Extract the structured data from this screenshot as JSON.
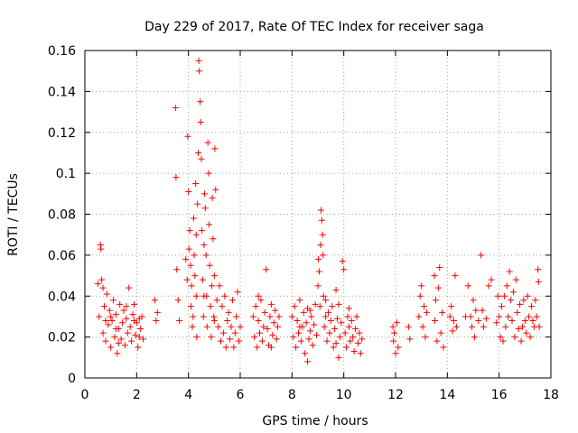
{
  "chart_data": {
    "type": "scatter",
    "title": "Day 229 of 2017, Rate Of TEC Index for receiver saga",
    "xlabel": "GPS time / hours",
    "ylabel": "ROTI / TECUs",
    "xlim": [
      0,
      18
    ],
    "ylim": [
      0,
      0.16
    ],
    "x_ticks": [
      0,
      2,
      4,
      6,
      8,
      10,
      12,
      14,
      16,
      18
    ],
    "x_tick_labels": [
      "0",
      "2",
      "4",
      "6",
      "8",
      "10",
      "12",
      "14",
      "16",
      "18"
    ],
    "y_ticks": [
      0,
      0.02,
      0.04,
      0.06,
      0.08,
      0.1,
      0.12,
      0.14,
      0.16
    ],
    "y_tick_labels": [
      "0",
      "0.02",
      "0.04",
      "0.06",
      "0.08",
      "0.1",
      "0.12",
      "0.14",
      "0.16"
    ],
    "grid": true,
    "marker": "+",
    "color": "#ff0000",
    "series": [
      {
        "name": "ROTI",
        "points": [
          [
            0.5,
            0.046
          ],
          [
            0.55,
            0.03
          ],
          [
            0.6,
            0.065
          ],
          [
            0.62,
            0.063
          ],
          [
            0.65,
            0.048
          ],
          [
            0.7,
            0.022
          ],
          [
            0.75,
            0.035
          ],
          [
            0.8,
            0.018
          ],
          [
            0.85,
            0.041
          ],
          [
            0.9,
            0.026
          ],
          [
            0.95,
            0.033
          ],
          [
            1.0,
            0.015
          ],
          [
            1.05,
            0.028
          ],
          [
            1.1,
            0.038
          ],
          [
            1.15,
            0.02
          ],
          [
            1.2,
            0.031
          ],
          [
            1.25,
            0.012
          ],
          [
            1.3,
            0.024
          ],
          [
            1.35,
            0.036
          ],
          [
            1.4,
            0.019
          ],
          [
            1.45,
            0.027
          ],
          [
            1.5,
            0.033
          ],
          [
            1.55,
            0.016
          ],
          [
            1.6,
            0.029
          ],
          [
            1.65,
            0.022
          ],
          [
            1.7,
            0.044
          ],
          [
            1.75,
            0.025
          ],
          [
            1.8,
            0.018
          ],
          [
            1.85,
            0.031
          ],
          [
            1.9,
            0.036
          ],
          [
            1.95,
            0.021
          ],
          [
            2.0,
            0.027
          ],
          [
            2.05,
            0.015
          ],
          [
            2.1,
            0.029
          ],
          [
            2.15,
            0.024
          ],
          [
            2.2,
            0.03
          ],
          [
            2.25,
            0.019
          ],
          [
            0.7,
            0.044
          ],
          [
            1.0,
            0.03
          ],
          [
            1.3,
            0.017
          ],
          [
            1.6,
            0.035
          ],
          [
            1.9,
            0.028
          ],
          [
            2.1,
            0.02
          ],
          [
            0.8,
            0.028
          ],
          [
            1.2,
            0.024
          ],
          [
            2.7,
            0.038
          ],
          [
            2.75,
            0.028
          ],
          [
            2.8,
            0.032
          ],
          [
            3.5,
            0.132
          ],
          [
            3.52,
            0.098
          ],
          [
            3.55,
            0.053
          ],
          [
            3.6,
            0.038
          ],
          [
            3.65,
            0.028
          ],
          [
            3.9,
            0.058
          ],
          [
            3.95,
            0.048
          ],
          [
            3.97,
            0.118
          ],
          [
            4.0,
            0.091
          ],
          [
            4.02,
            0.063
          ],
          [
            4.05,
            0.072
          ],
          [
            4.08,
            0.055
          ],
          [
            4.1,
            0.035
          ],
          [
            4.12,
            0.045
          ],
          [
            4.15,
            0.025
          ],
          [
            4.18,
            0.03
          ],
          [
            4.2,
            0.078
          ],
          [
            4.22,
            0.06
          ],
          [
            4.25,
            0.05
          ],
          [
            4.28,
            0.095
          ],
          [
            4.3,
            0.04
          ],
          [
            4.32,
            0.02
          ],
          [
            4.35,
            0.085
          ],
          [
            4.38,
            0.11
          ],
          [
            4.4,
            0.155
          ],
          [
            4.42,
            0.15
          ],
          [
            4.45,
            0.135
          ],
          [
            4.47,
            0.125
          ],
          [
            4.5,
            0.107
          ],
          [
            4.52,
            0.072
          ],
          [
            4.55,
            0.048
          ],
          [
            4.58,
            0.03
          ],
          [
            4.6,
            0.065
          ],
          [
            4.62,
            0.09
          ],
          [
            4.65,
            0.083
          ],
          [
            4.68,
            0.06
          ],
          [
            4.7,
            0.04
          ],
          [
            4.72,
            0.025
          ],
          [
            4.75,
            0.115
          ],
          [
            4.78,
            0.1
          ],
          [
            4.8,
            0.075
          ],
          [
            4.82,
            0.055
          ],
          [
            4.85,
            0.035
          ],
          [
            4.88,
            0.02
          ],
          [
            4.9,
            0.045
          ],
          [
            4.92,
            0.088
          ],
          [
            4.95,
            0.068
          ],
          [
            4.98,
            0.03
          ],
          [
            5.0,
            0.05
          ],
          [
            5.02,
            0.112
          ],
          [
            5.05,
            0.092
          ],
          [
            5.1,
            0.038
          ],
          [
            5.15,
            0.025
          ],
          [
            5.2,
            0.045
          ],
          [
            5.25,
            0.018
          ],
          [
            5.3,
            0.035
          ],
          [
            5.35,
            0.022
          ],
          [
            5.4,
            0.04
          ],
          [
            5.45,
            0.015
          ],
          [
            5.5,
            0.028
          ],
          [
            5.55,
            0.032
          ],
          [
            5.6,
            0.019
          ],
          [
            5.65,
            0.025
          ],
          [
            5.7,
            0.038
          ],
          [
            5.75,
            0.015
          ],
          [
            5.8,
            0.022
          ],
          [
            5.85,
            0.03
          ],
          [
            5.9,
            0.042
          ],
          [
            5.95,
            0.018
          ],
          [
            6.0,
            0.025
          ],
          [
            4.3,
            0.07
          ],
          [
            4.6,
            0.04
          ],
          [
            5.0,
            0.028
          ],
          [
            6.5,
            0.03
          ],
          [
            6.55,
            0.02
          ],
          [
            6.6,
            0.035
          ],
          [
            6.65,
            0.015
          ],
          [
            6.7,
            0.028
          ],
          [
            6.75,
            0.022
          ],
          [
            6.8,
            0.038
          ],
          [
            6.85,
            0.018
          ],
          [
            6.9,
            0.025
          ],
          [
            6.95,
            0.032
          ],
          [
            7.0,
            0.053
          ],
          [
            7.05,
            0.024
          ],
          [
            7.1,
            0.016
          ],
          [
            7.15,
            0.03
          ],
          [
            7.2,
            0.036
          ],
          [
            7.25,
            0.021
          ],
          [
            7.3,
            0.027
          ],
          [
            7.35,
            0.033
          ],
          [
            7.4,
            0.019
          ],
          [
            7.45,
            0.025
          ],
          [
            7.5,
            0.03
          ],
          [
            6.7,
            0.04
          ],
          [
            7.2,
            0.015
          ],
          [
            8.0,
            0.03
          ],
          [
            8.05,
            0.02
          ],
          [
            8.1,
            0.035
          ],
          [
            8.15,
            0.015
          ],
          [
            8.2,
            0.028
          ],
          [
            8.25,
            0.022
          ],
          [
            8.3,
            0.038
          ],
          [
            8.35,
            0.018
          ],
          [
            8.4,
            0.025
          ],
          [
            8.45,
            0.032
          ],
          [
            8.5,
            0.012
          ],
          [
            8.55,
            0.027
          ],
          [
            8.6,
            0.034
          ],
          [
            8.65,
            0.019
          ],
          [
            8.7,
            0.023
          ],
          [
            8.75,
            0.03
          ],
          [
            8.8,
            0.016
          ],
          [
            8.85,
            0.026
          ],
          [
            8.9,
            0.036
          ],
          [
            8.95,
            0.021
          ],
          [
            9.0,
            0.045
          ],
          [
            9.02,
            0.058
          ],
          [
            9.05,
            0.052
          ],
          [
            9.08,
            0.035
          ],
          [
            9.1,
            0.065
          ],
          [
            9.12,
            0.082
          ],
          [
            9.15,
            0.077
          ],
          [
            9.18,
            0.07
          ],
          [
            9.2,
            0.06
          ],
          [
            9.22,
            0.04
          ],
          [
            9.25,
            0.025
          ],
          [
            9.3,
            0.03
          ],
          [
            9.35,
            0.018
          ],
          [
            9.4,
            0.032
          ],
          [
            9.45,
            0.022
          ],
          [
            9.5,
            0.028
          ],
          [
            9.55,
            0.035
          ],
          [
            9.6,
            0.015
          ],
          [
            9.65,
            0.024
          ],
          [
            9.7,
            0.043
          ],
          [
            9.75,
            0.029
          ],
          [
            9.8,
            0.036
          ],
          [
            9.85,
            0.02
          ],
          [
            9.9,
            0.027
          ],
          [
            9.95,
            0.057
          ],
          [
            10.0,
            0.053
          ],
          [
            10.05,
            0.022
          ],
          [
            10.1,
            0.015
          ],
          [
            10.15,
            0.03
          ],
          [
            10.2,
            0.025
          ],
          [
            10.25,
            0.018
          ],
          [
            10.3,
            0.028
          ],
          [
            10.35,
            0.02
          ],
          [
            10.4,
            0.013
          ],
          [
            10.45,
            0.024
          ],
          [
            10.5,
            0.03
          ],
          [
            10.55,
            0.017
          ],
          [
            10.6,
            0.022
          ],
          [
            10.65,
            0.012
          ],
          [
            10.7,
            0.019
          ],
          [
            8.3,
            0.025
          ],
          [
            8.7,
            0.033
          ],
          [
            9.3,
            0.038
          ],
          [
            9.7,
            0.017
          ],
          [
            10.2,
            0.034
          ],
          [
            8.6,
            0.008
          ],
          [
            9.8,
            0.01
          ],
          [
            11.9,
            0.025
          ],
          [
            11.92,
            0.018
          ],
          [
            11.95,
            0.022
          ],
          [
            12.0,
            0.012
          ],
          [
            12.05,
            0.027
          ],
          [
            12.1,
            0.015
          ],
          [
            12.5,
            0.025
          ],
          [
            12.55,
            0.019
          ],
          [
            12.9,
            0.03
          ],
          [
            12.95,
            0.04
          ],
          [
            13.0,
            0.045
          ],
          [
            13.05,
            0.025
          ],
          [
            13.1,
            0.035
          ],
          [
            13.15,
            0.02
          ],
          [
            13.2,
            0.032
          ],
          [
            13.5,
            0.05
          ],
          [
            13.52,
            0.028
          ],
          [
            13.55,
            0.038
          ],
          [
            13.6,
            0.018
          ],
          [
            13.65,
            0.044
          ],
          [
            13.7,
            0.054
          ],
          [
            13.75,
            0.022
          ],
          [
            13.8,
            0.032
          ],
          [
            13.85,
            0.015
          ],
          [
            14.1,
            0.03
          ],
          [
            14.15,
            0.035
          ],
          [
            14.2,
            0.023
          ],
          [
            14.25,
            0.028
          ],
          [
            14.3,
            0.05
          ],
          [
            14.35,
            0.025
          ],
          [
            14.7,
            0.03
          ],
          [
            14.8,
            0.045
          ],
          [
            14.9,
            0.03
          ],
          [
            14.95,
            0.025
          ],
          [
            15.0,
            0.038
          ],
          [
            15.05,
            0.02
          ],
          [
            15.1,
            0.033
          ],
          [
            15.2,
            0.028
          ],
          [
            15.3,
            0.06
          ],
          [
            15.35,
            0.033
          ],
          [
            15.4,
            0.025
          ],
          [
            15.5,
            0.029
          ],
          [
            15.6,
            0.045
          ],
          [
            15.7,
            0.048
          ],
          [
            15.9,
            0.027
          ],
          [
            15.95,
            0.04
          ],
          [
            16.0,
            0.03
          ],
          [
            16.05,
            0.02
          ],
          [
            16.1,
            0.035
          ],
          [
            16.15,
            0.018
          ],
          [
            16.2,
            0.04
          ],
          [
            16.25,
            0.025
          ],
          [
            16.3,
            0.045
          ],
          [
            16.35,
            0.03
          ],
          [
            16.4,
            0.052
          ],
          [
            16.45,
            0.038
          ],
          [
            16.5,
            0.028
          ],
          [
            16.55,
            0.042
          ],
          [
            16.6,
            0.02
          ],
          [
            16.65,
            0.048
          ],
          [
            16.7,
            0.032
          ],
          [
            16.75,
            0.024
          ],
          [
            16.8,
            0.036
          ],
          [
            16.85,
            0.018
          ],
          [
            16.9,
            0.025
          ],
          [
            16.95,
            0.038
          ],
          [
            17.0,
            0.028
          ],
          [
            17.05,
            0.022
          ],
          [
            17.1,
            0.04
          ],
          [
            17.15,
            0.03
          ],
          [
            17.2,
            0.02
          ],
          [
            17.25,
            0.035
          ],
          [
            17.3,
            0.028
          ],
          [
            17.35,
            0.025
          ],
          [
            17.4,
            0.038
          ],
          [
            17.45,
            0.03
          ],
          [
            17.5,
            0.053
          ],
          [
            17.52,
            0.047
          ],
          [
            17.55,
            0.025
          ]
        ]
      }
    ]
  }
}
